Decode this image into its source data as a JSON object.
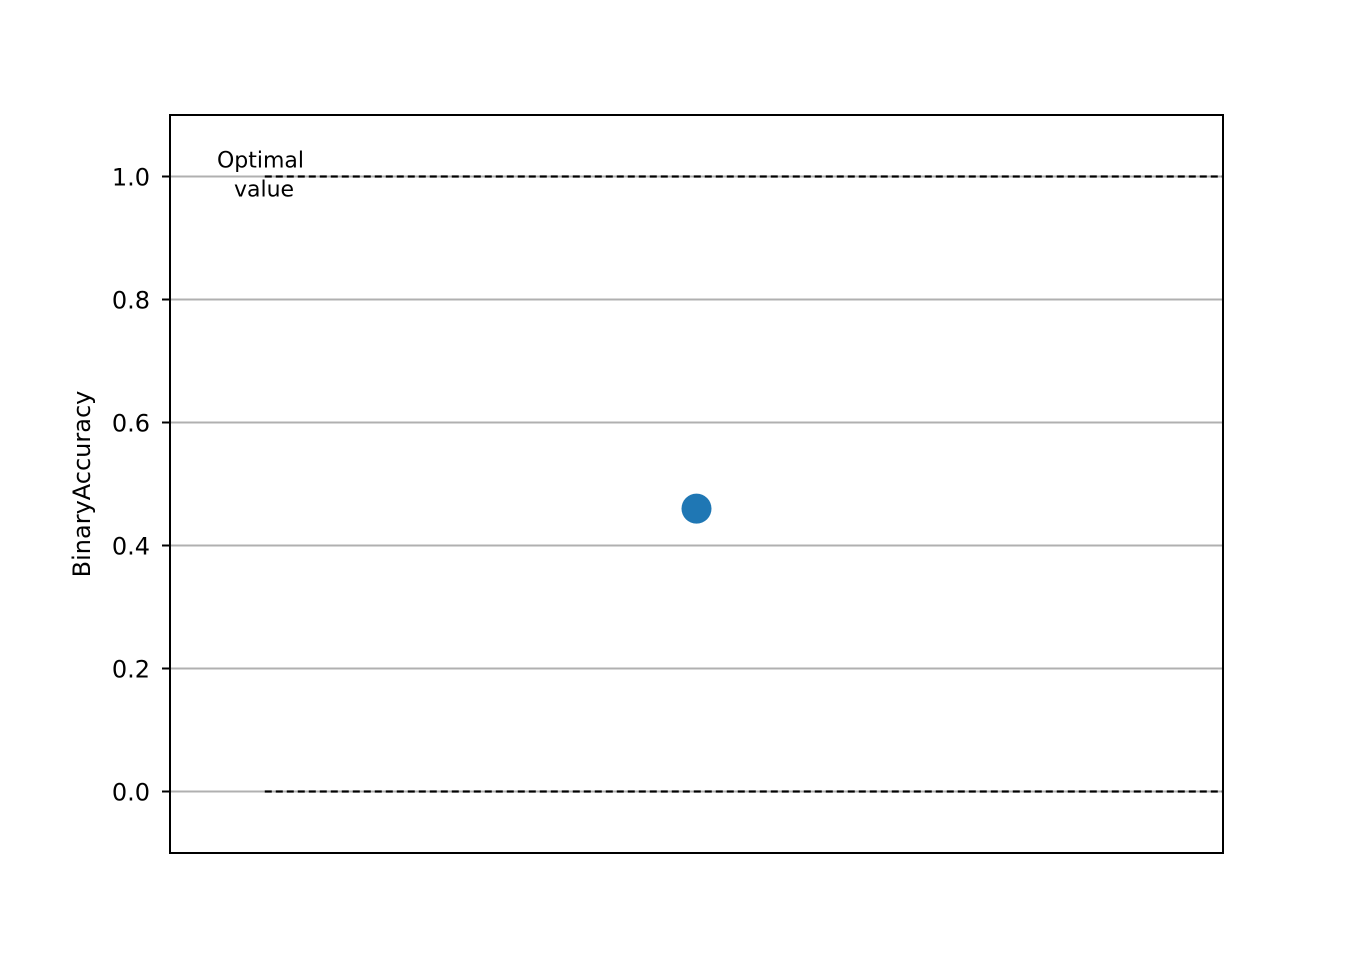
{
  "chart_data": {
    "type": "scatter",
    "ylabel": "BinaryAccuracy",
    "ylim": [
      -0.1,
      1.1
    ],
    "yticks": [
      {
        "value": 0.0,
        "label": "0.0"
      },
      {
        "value": 0.2,
        "label": "0.2"
      },
      {
        "value": 0.4,
        "label": "0.4"
      },
      {
        "value": 0.6,
        "label": "0.6"
      },
      {
        "value": 0.8,
        "label": "0.8"
      },
      {
        "value": 1.0,
        "label": "1.0"
      }
    ],
    "grid": "horizontal",
    "points": [
      {
        "y": 0.46
      }
    ],
    "point_color": "#1f77b4",
    "reference_lines": [
      {
        "y": 1.0,
        "style": "dashed",
        "color": "#000000"
      },
      {
        "y": 0.0,
        "style": "dashed",
        "color": "#000000"
      }
    ],
    "annotation": {
      "line1": "Optimal",
      "line2": "value",
      "y": 1.0
    }
  }
}
